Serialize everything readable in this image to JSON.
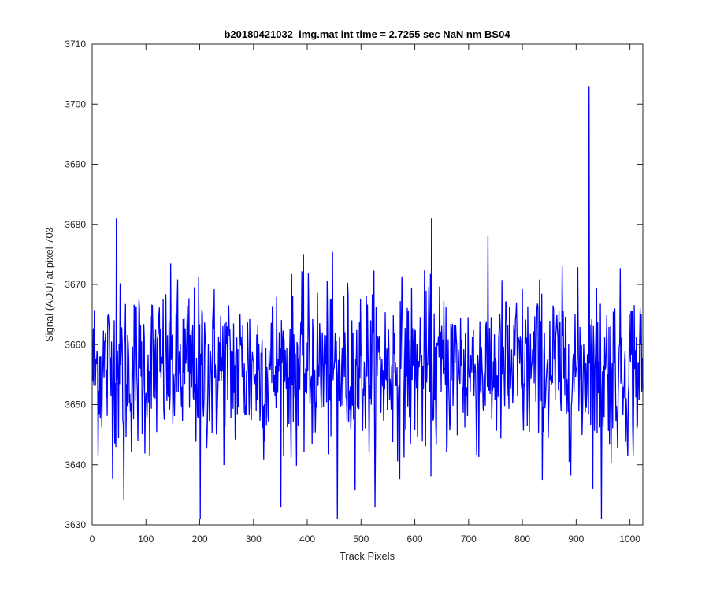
{
  "chart_data": {
    "type": "line",
    "title": "b20180421032_img.mat int time = 2.7255 sec  NaN nm BS04",
    "xlabel": "Track Pixels",
    "ylabel": "Signal (ADU) at pixel 703",
    "xlim": [
      0,
      1024
    ],
    "ylim": [
      3630,
      3710
    ],
    "xticks": [
      "0",
      "100",
      "200",
      "300",
      "400",
      "500",
      "600",
      "700",
      "800",
      "900",
      "1000"
    ],
    "yticks": [
      "3630",
      "3640",
      "3650",
      "3660",
      "3670",
      "3680",
      "3690",
      "3700",
      "3710"
    ],
    "grid": false,
    "legend": "none",
    "series": [
      {
        "color": "#0000ff",
        "x_start": 1,
        "x_step": 1,
        "count": 1024,
        "mean": 3656,
        "noise_std": 7,
        "y_min": 3631,
        "y_max": 3703,
        "notable_points": [
          {
            "x": 45,
            "y": 3681
          },
          {
            "x": 59,
            "y": 3634
          },
          {
            "x": 201,
            "y": 3631
          },
          {
            "x": 456,
            "y": 3631
          },
          {
            "x": 631,
            "y": 3681
          },
          {
            "x": 924,
            "y": 3703
          },
          {
            "x": 947,
            "y": 3631
          }
        ]
      }
    ]
  }
}
